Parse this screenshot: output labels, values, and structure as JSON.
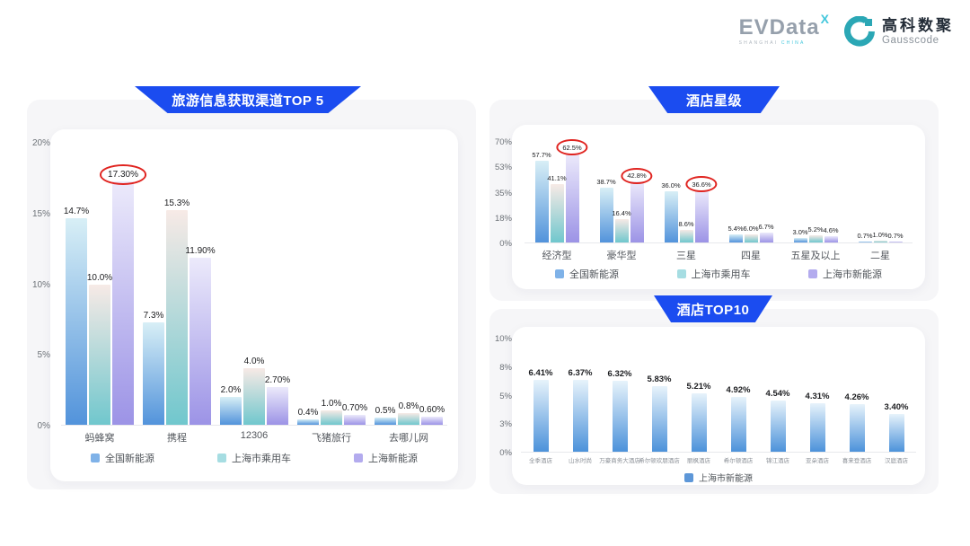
{
  "header": {
    "evdata_logo": {
      "text": "EVData",
      "sup": "X",
      "subtext_left": "SHANGHAI",
      "subtext_right": "CHINA"
    },
    "gausscode_logo": {
      "cn": "高科数聚",
      "en": "Gausscode",
      "icon_color": "#2ba7b5"
    }
  },
  "colors": {
    "banner_blue": "#1b4cf0",
    "annotation_red": "#e02420",
    "panel_gray": "#f6f6f8"
  },
  "chart_data": [
    {
      "type": "bar",
      "title": "旅游信息获取渠道TOP 5",
      "xlabel": "",
      "ylabel": "",
      "ylim": [
        0,
        20
      ],
      "yticks": [
        "20%",
        "15%",
        "10%",
        "5%",
        "0%"
      ],
      "grid": false,
      "legend_position": "bottom",
      "categories": [
        "蚂蜂窝",
        "携程",
        "12306",
        "飞猪旅行",
        "去哪儿网"
      ],
      "series": [
        {
          "name": "全国新能源",
          "values": [
            14.7,
            7.3,
            2.0,
            0.4,
            0.5
          ],
          "labels": [
            "14.7%",
            "7.3%",
            "2.0%",
            "0.4%",
            "0.5%"
          ],
          "gradient_top": "#d8eff6",
          "gradient_bottom": "#5293db",
          "legend_color": "#7fb2e8"
        },
        {
          "name": "上海市乘用车",
          "values": [
            10.0,
            15.3,
            4.0,
            1.0,
            0.8
          ],
          "labels": [
            "10.0%",
            "15.3%",
            "4.0%",
            "1.0%",
            "0.8%"
          ],
          "gradient_top": "#f7eae6",
          "gradient_bottom": "#70c7cd",
          "legend_color": "#a6dde2"
        },
        {
          "name": "上海新能源",
          "values": [
            17.3,
            11.9,
            2.7,
            0.7,
            0.6
          ],
          "labels": [
            "17.30%",
            "11.90%",
            "2.70%",
            "0.70%",
            "0.60%"
          ],
          "gradient_top": "#eceafb",
          "gradient_bottom": "#9c93e6",
          "legend_color": "#b3abee"
        }
      ],
      "circled": [
        [
          2,
          0
        ]
      ]
    },
    {
      "type": "bar",
      "title": "酒店星级",
      "xlabel": "",
      "ylabel": "",
      "ylim": [
        0,
        70
      ],
      "yticks": [
        "70%",
        "53%",
        "35%",
        "18%",
        "0%"
      ],
      "grid": false,
      "legend_position": "bottom",
      "categories": [
        "经济型",
        "豪华型",
        "三星",
        "四星",
        "五星及以上",
        "二星"
      ],
      "series": [
        {
          "name": "全国新能源",
          "values": [
            57.7,
            38.7,
            36.0,
            5.4,
            3.0,
            0.7
          ],
          "labels": [
            "57.7%",
            "38.7%",
            "36.0%",
            "5.4%",
            "3.0%",
            "0.7%"
          ],
          "gradient_top": "#d8eff6",
          "gradient_bottom": "#5293db",
          "legend_color": "#7fb2e8"
        },
        {
          "name": "上海市乘用车",
          "values": [
            41.1,
            16.4,
            8.6,
            6.0,
            5.2,
            1.0
          ],
          "labels": [
            "41.1%",
            "16.4%",
            "8.6%",
            "6.0%",
            "5.2%",
            "1.0%"
          ],
          "gradient_top": "#f7eae6",
          "gradient_bottom": "#70c7cd",
          "legend_color": "#a6dde2"
        },
        {
          "name": "上海市新能源",
          "values": [
            62.5,
            42.8,
            36.6,
            6.7,
            4.6,
            0.7
          ],
          "labels": [
            "62.5%",
            "42.8%",
            "36.6%",
            "6.7%",
            "4.6%",
            "0.7%"
          ],
          "gradient_top": "#eceafb",
          "gradient_bottom": "#9c93e6",
          "legend_color": "#b3abee"
        }
      ],
      "circled": [
        [
          2,
          0
        ],
        [
          2,
          1
        ],
        [
          2,
          2
        ]
      ]
    },
    {
      "type": "bar",
      "title": "酒店TOP10",
      "xlabel": "",
      "ylabel": "",
      "ylim": [
        0,
        10
      ],
      "yticks": [
        "10%",
        "8%",
        "5%",
        "3%",
        "0%"
      ],
      "grid": false,
      "legend_position": "bottom",
      "categories": [
        "全季酒店",
        "山水时尚",
        "万豪商务大酒店",
        "希尔顿欢朋酒店",
        "丽枫酒店",
        "希尔顿酒店",
        "锦江酒店",
        "亚朵酒店",
        "喜来登酒店",
        "汉庭酒店"
      ],
      "series": [
        {
          "name": "上海市新能源",
          "values": [
            6.41,
            6.37,
            6.32,
            5.83,
            5.21,
            4.92,
            4.54,
            4.31,
            4.26,
            3.4
          ],
          "labels": [
            "6.41%",
            "6.37%",
            "6.32%",
            "5.83%",
            "5.21%",
            "4.92%",
            "4.54%",
            "4.31%",
            "4.26%",
            "3.40%"
          ],
          "gradient_top": "#e7f3fb",
          "gradient_bottom": "#4c92da",
          "legend_color": "#5d97d8"
        }
      ],
      "circled": []
    }
  ]
}
